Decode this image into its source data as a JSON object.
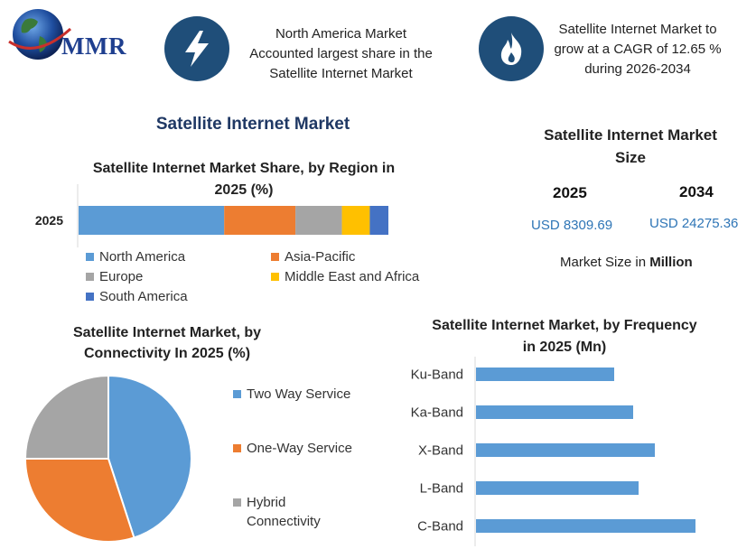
{
  "header": {
    "logo_text": "MMR",
    "box1_lines": [
      "North America Market",
      "Accounted largest share in the",
      "Satellite Internet Market"
    ],
    "box2_lines": [
      "Satellite Internet Market to",
      "grow at a CAGR of 12.65 %",
      "during 2026-2034"
    ],
    "icon1": "lightning-icon",
    "icon2": "flame-icon"
  },
  "main_title": "Satellite Internet Market",
  "market_size": {
    "title_lines": [
      "Satellite Internet Market",
      "Size"
    ],
    "year1": "2025",
    "year2": "2034",
    "value1": "USD 8309.69",
    "value2": "USD 24275.36",
    "unit_prefix": "Market Size in",
    "unit_bold": "Million"
  },
  "colors": {
    "north_america": "#5b9bd5",
    "asia_pacific": "#ed7d31",
    "europe": "#a5a5a5",
    "mea": "#ffc000",
    "south_america": "#4472c4",
    "icon_circle": "#1f4e79"
  },
  "chart_data": [
    {
      "type": "bar",
      "orientation": "horizontal-stacked",
      "title_lines": [
        "Satellite Internet Market Share, by Region in",
        "2025 (%)"
      ],
      "categories": [
        "2025"
      ],
      "series": [
        {
          "name": "North America",
          "values": [
            47
          ],
          "color": "#5b9bd5"
        },
        {
          "name": "Asia-Pacific",
          "values": [
            23
          ],
          "color": "#ed7d31"
        },
        {
          "name": "Europe",
          "values": [
            15
          ],
          "color": "#a5a5a5"
        },
        {
          "name": "Middle East and Africa",
          "values": [
            9
          ],
          "color": "#ffc000"
        },
        {
          "name": "South America",
          "values": [
            6
          ],
          "color": "#4472c4"
        }
      ],
      "legend": "bottom"
    },
    {
      "type": "pie",
      "title_lines": [
        "Satellite Internet Market, by",
        "Connectivity In 2025 (%)"
      ],
      "labels": [
        "Two Way Service",
        "One-Way Service",
        "Hybrid Connectivity"
      ],
      "legend_lines": [
        [
          "Two Way Service"
        ],
        [
          "One-Way Service"
        ],
        [
          "Hybrid",
          "Connectivity"
        ]
      ],
      "values": [
        45,
        30,
        25
      ],
      "colors": [
        "#5b9bd5",
        "#ed7d31",
        "#a5a5a5"
      ],
      "legend": "right"
    },
    {
      "type": "bar",
      "orientation": "horizontal",
      "title_lines": [
        "Satellite Internet Market, by Frequency",
        "in 2025 (Mn)"
      ],
      "categories": [
        "Ku-Band",
        "Ka-Band",
        "X-Band",
        "L-Band",
        "C-Band"
      ],
      "values": [
        2.55,
        2.9,
        3.3,
        3.0,
        4.05
      ],
      "color": "#5b9bd5",
      "xlim": [
        0,
        5
      ]
    }
  ]
}
